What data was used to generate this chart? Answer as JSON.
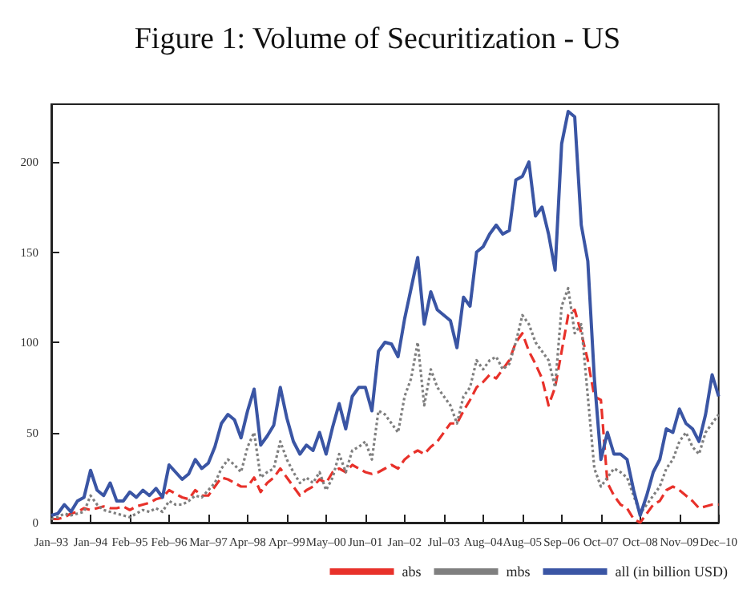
{
  "chart_data": {
    "type": "line",
    "title": "Figure 1: Volume of Securitization - US",
    "categories": [
      "Jan–93",
      null,
      null,
      null,
      null,
      null,
      "Jan–94",
      null,
      null,
      null,
      null,
      null,
      "Feb–95",
      null,
      null,
      null,
      null,
      null,
      "Feb–96",
      null,
      null,
      null,
      null,
      null,
      "Mar–97",
      null,
      null,
      null,
      null,
      null,
      "Apr–98",
      null,
      null,
      null,
      null,
      null,
      "Apr–99",
      null,
      null,
      null,
      null,
      null,
      "May–00",
      null,
      null,
      null,
      null,
      null,
      "Jun–01",
      null,
      null,
      null,
      null,
      null,
      "Jan–02",
      null,
      null,
      null,
      null,
      null,
      "Jul–03",
      null,
      null,
      null,
      null,
      null,
      "Aug–04",
      null,
      null,
      null,
      null,
      null,
      "Aug–05",
      null,
      null,
      null,
      null,
      null,
      "Sep–06",
      null,
      null,
      null,
      null,
      null,
      "Oct–07",
      null,
      null,
      null,
      null,
      null,
      "Oct–08",
      null,
      null,
      null,
      null,
      null,
      "Nov–09",
      null,
      null,
      null,
      null,
      null,
      "Dec–10"
    ],
    "series": [
      {
        "name": "abs",
        "color": "#e8312a",
        "line_style": "dashed",
        "values": [
          2,
          2,
          3,
          5,
          6,
          8,
          7,
          8,
          9,
          8,
          8,
          9,
          7,
          9,
          10,
          11,
          13,
          14,
          18,
          16,
          14,
          13,
          18,
          15,
          15,
          20,
          25,
          24,
          22,
          20,
          20,
          25,
          17,
          22,
          25,
          30,
          25,
          20,
          15,
          18,
          20,
          24,
          22,
          28,
          30,
          28,
          32,
          30,
          28,
          27,
          28,
          30,
          32,
          30,
          35,
          38,
          40,
          38,
          42,
          45,
          50,
          55,
          55,
          62,
          68,
          75,
          78,
          82,
          80,
          85,
          90,
          100,
          105,
          95,
          88,
          80,
          65,
          75,
          95,
          115,
          118,
          105,
          90,
          70,
          68,
          22,
          15,
          10,
          8,
          2,
          0,
          5,
          10,
          12,
          18,
          20,
          18,
          15,
          12,
          8,
          9,
          10,
          10
        ]
      },
      {
        "name": "mbs",
        "color": "#7f7f7f",
        "line_style": "dotted",
        "values": [
          2,
          3,
          5,
          4,
          5,
          6,
          15,
          10,
          7,
          6,
          5,
          4,
          3,
          5,
          7,
          6,
          8,
          6,
          12,
          10,
          10,
          12,
          15,
          14,
          18,
          22,
          30,
          35,
          32,
          28,
          42,
          50,
          25,
          28,
          30,
          45,
          35,
          28,
          22,
          25,
          22,
          28,
          18,
          25,
          38,
          28,
          40,
          42,
          45,
          35,
          62,
          60,
          55,
          50,
          70,
          80,
          100,
          65,
          85,
          75,
          70,
          65,
          55,
          70,
          75,
          90,
          85,
          90,
          92,
          85,
          88,
          100,
          115,
          110,
          100,
          95,
          90,
          75,
          120,
          130,
          105,
          110,
          70,
          30,
          20,
          25,
          30,
          28,
          25,
          15,
          5,
          10,
          15,
          20,
          30,
          35,
          45,
          50,
          42,
          38,
          50,
          55,
          60
        ]
      },
      {
        "name": "all (in billion USD)",
        "color": "#3a55a4",
        "line_style": "solid",
        "values": [
          4,
          5,
          10,
          6,
          12,
          14,
          29,
          18,
          15,
          22,
          12,
          12,
          17,
          14,
          18,
          15,
          19,
          14,
          32,
          28,
          24,
          27,
          35,
          30,
          33,
          42,
          55,
          60,
          57,
          47,
          62,
          74,
          43,
          48,
          54,
          75,
          58,
          45,
          38,
          43,
          40,
          50,
          38,
          53,
          66,
          52,
          70,
          75,
          75,
          62,
          95,
          100,
          99,
          92,
          113,
          130,
          147,
          110,
          128,
          118,
          115,
          112,
          97,
          125,
          120,
          150,
          153,
          160,
          165,
          160,
          162,
          190,
          192,
          200,
          170,
          175,
          160,
          140,
          210,
          228,
          225,
          165,
          145,
          80,
          35,
          50,
          38,
          38,
          35,
          18,
          4,
          15,
          28,
          35,
          52,
          50,
          63,
          55,
          52,
          45,
          60,
          82,
          70
        ]
      }
    ],
    "ylim": [
      0,
      232
    ],
    "yticks": [
      0,
      50,
      100,
      150,
      200
    ],
    "grid": false,
    "legend": "bottom right",
    "marker": "none"
  }
}
